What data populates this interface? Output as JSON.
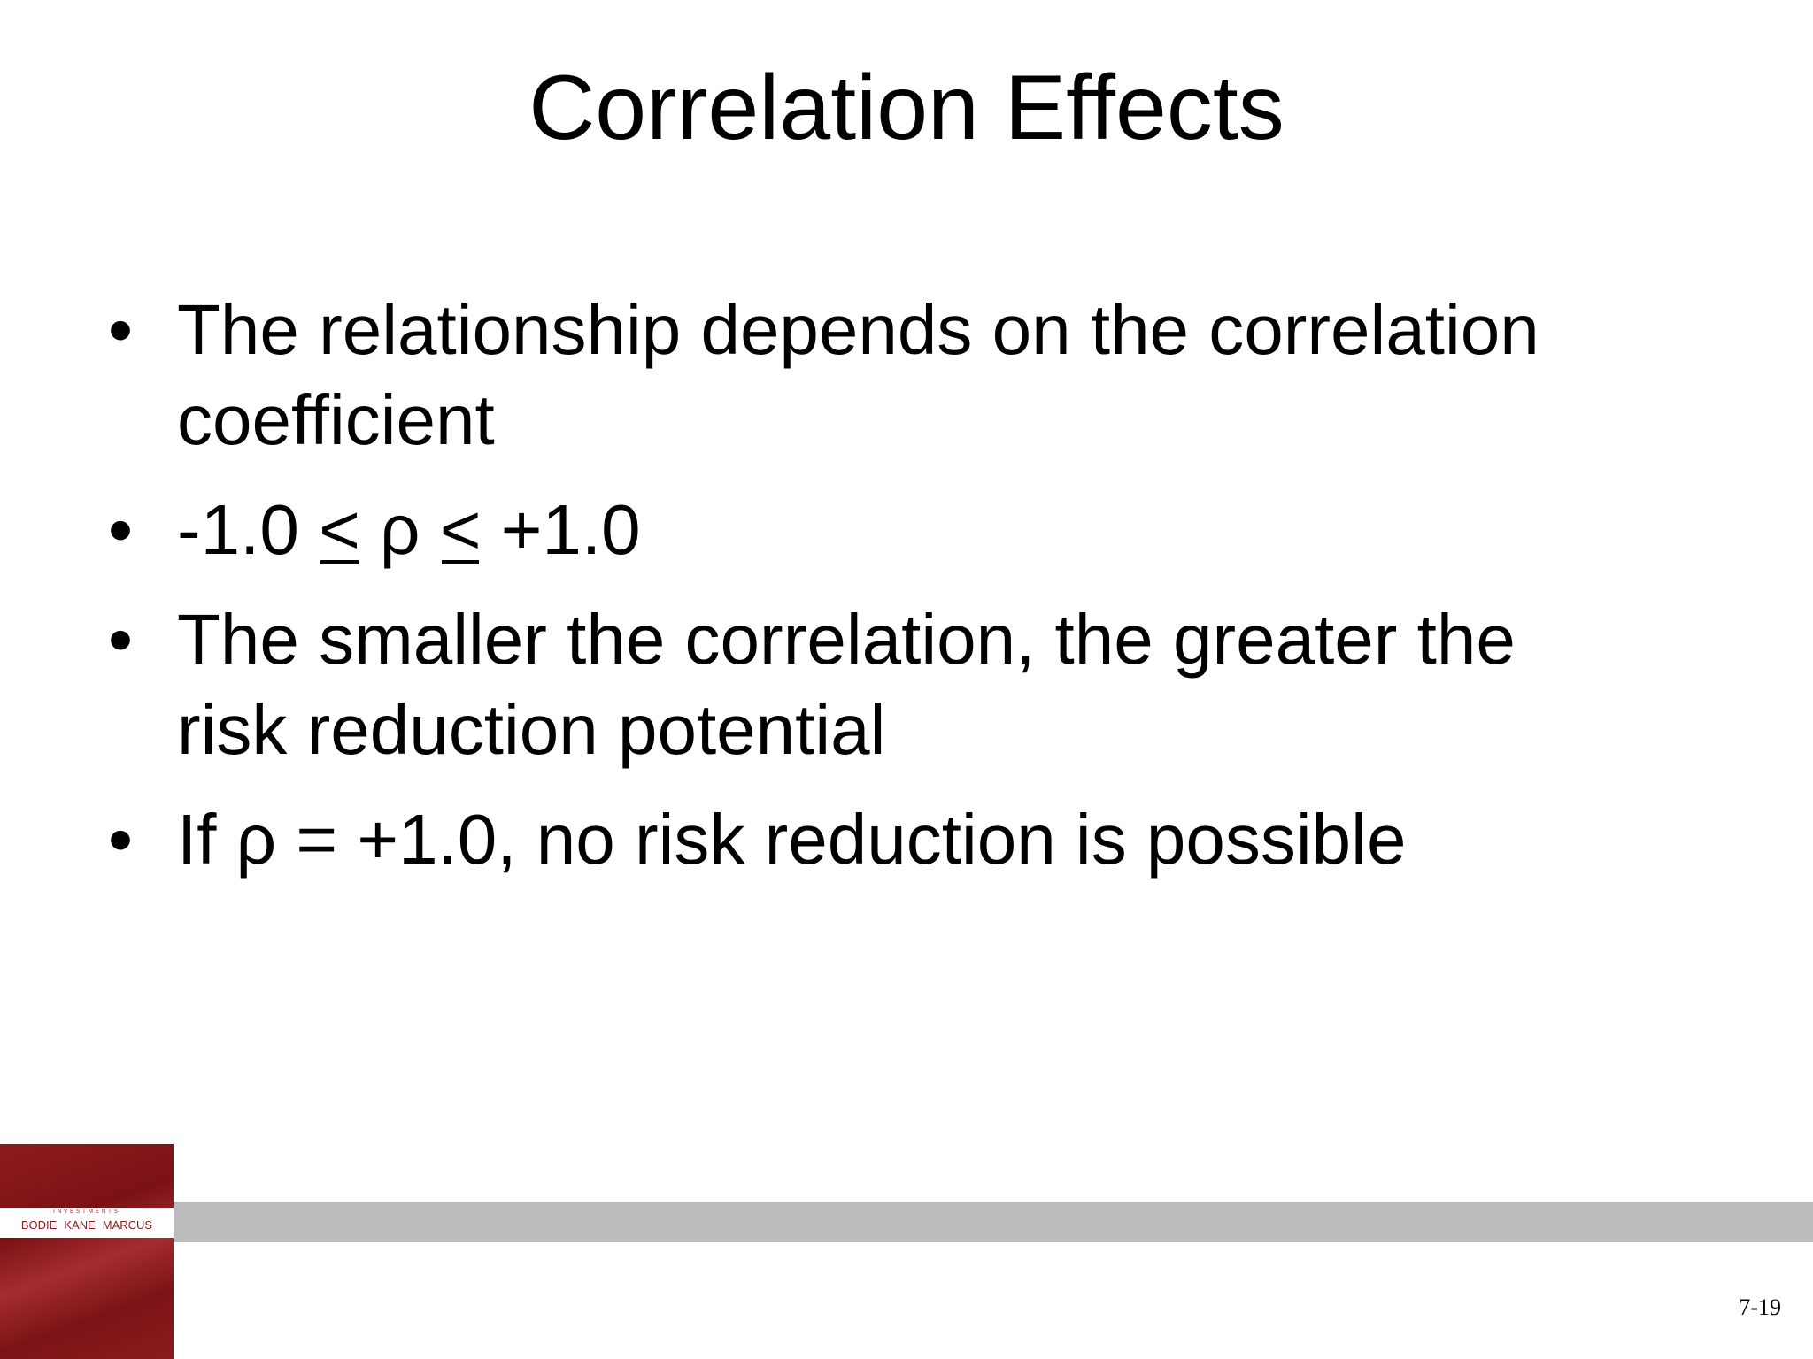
{
  "slide": {
    "title": "Correlation Effects",
    "page_number": "7-19"
  },
  "bullets": [
    {
      "text_lines": [
        "The relationship depends on the correlation",
        "coefficient"
      ]
    },
    {
      "parts": [
        "-1.0 ",
        "<",
        " ρ ",
        "<",
        " +1.0"
      ]
    },
    {
      "text_lines": [
        "The smaller the correlation, the greater the",
        "risk reduction potential"
      ]
    },
    {
      "text": "If ρ = +1.0, no risk reduction is possible"
    }
  ],
  "book_cover": {
    "series": "INVESTMENTS",
    "authors": [
      "BODIE",
      "KANE",
      "MARCUS"
    ]
  },
  "colors": {
    "cover_red": "#8a1a1d",
    "bar_gray": "#bcbbbe",
    "background": "#ffffff",
    "text": "#000000"
  }
}
